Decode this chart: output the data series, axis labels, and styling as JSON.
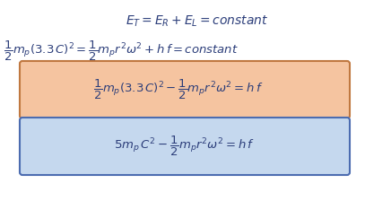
{
  "line1": "$\\mathit{E_T = E_R + E_L = constant}$",
  "line2_left": "$\\dfrac{1}{2}m_p(3.3\\,C)^2 = \\dfrac{1}{2}m_pr^2\\omega^2 + h\\,f = constant$",
  "box1_text": "$\\dfrac{1}{2}m_p(3.3\\,C)^2 - \\dfrac{1}{2}m_pr^2\\omega^2 = h\\,f$",
  "box2_text": "$5m_p\\,C^2 - \\dfrac{1}{2}m_pr^2\\omega^2 = h\\,f$",
  "box1_facecolor": "#F5C4A0",
  "box1_edgecolor": "#C07840",
  "box2_facecolor": "#C5D8EE",
  "box2_edgecolor": "#4C6CB0",
  "text_color": "#2C3E7A",
  "bg_color": "#FFFFFF",
  "fig_width": 4.07,
  "fig_height": 2.24,
  "dpi": 100
}
